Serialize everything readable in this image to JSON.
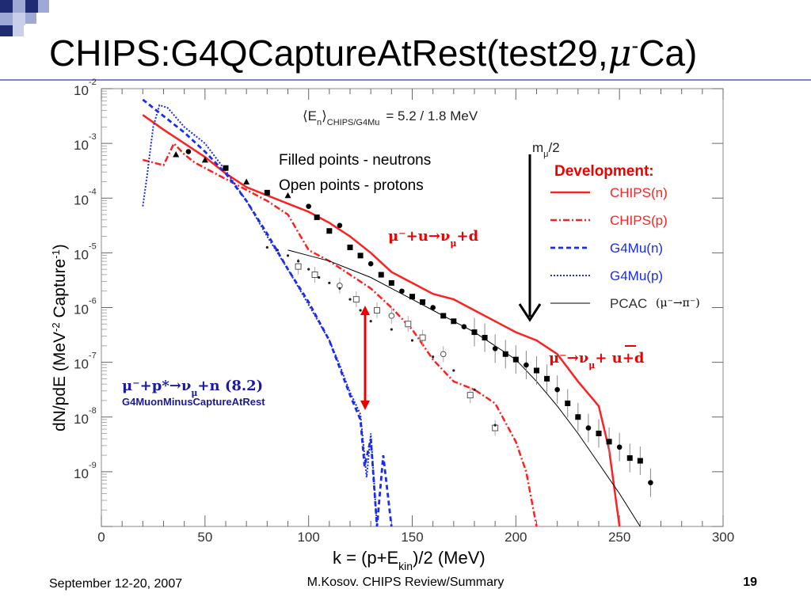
{
  "slide": {
    "title_main": "CHIPS:G4QCaptureAtRest(test29,",
    "title_mu": "μ",
    "title_sup": "-",
    "title_end": "Ca)",
    "footer_date": "September 12-20, 2007",
    "footer_author": "M.Kosov. CHIPS Review/Summary",
    "page_number": "19"
  },
  "annotations": {
    "mean_energy": "⟨E",
    "mean_energy_sub": "n",
    "mean_energy_sub2": "⟩",
    "mean_energy_sub3": "CHIPS/G4Mu",
    "mean_energy_value": "=   5.2 /  1.8 MeV",
    "filled_note": "Filled points - neutrons",
    "open_note": "Open points - protons",
    "mu_half": "m",
    "mu_half_sub": "μ",
    "mu_half_end": "/2",
    "reaction1": "μ⁻+u→ν",
    "reaction1_sub": "μ",
    "reaction1_end": "+d",
    "reaction2": "μ⁻→ν",
    "reaction2_sub": "μ",
    "reaction2_end": "+ u+d",
    "reaction3": "μ⁻+p*→ν",
    "reaction3_sub": "μ",
    "reaction3_end": "+n (8.2)",
    "reaction3_note": "G4MuonMinusCaptureAtRest",
    "development": "Development:",
    "pcac_note": "(μ⁻→π⁻)"
  },
  "chart_data": {
    "type": "line",
    "xlabel": "k = (p+E",
    "xlabel_sub": "kin",
    "xlabel_end": ")/2 (MeV)",
    "ylabel": "dN/pdE (MeV",
    "ylabel_sup": "-2",
    "ylabel_end": " Capture",
    "ylabel_sup2": "-1",
    "ylabel_close": ")",
    "xlim": [
      0,
      300
    ],
    "ylim_log10": [
      -10,
      -2
    ],
    "x_ticks": [
      "0",
      "50",
      "100",
      "150",
      "200",
      "250",
      "300"
    ],
    "y_ticks": [
      {
        "base": "10",
        "exp": "-2"
      },
      {
        "base": "10",
        "exp": "-3"
      },
      {
        "base": "10",
        "exp": "-4"
      },
      {
        "base": "10",
        "exp": "-5"
      },
      {
        "base": "10",
        "exp": "-6"
      },
      {
        "base": "10",
        "exp": "-7"
      },
      {
        "base": "10",
        "exp": "-8"
      },
      {
        "base": "10",
        "exp": "-9"
      }
    ],
    "legend_position": "right",
    "series": [
      {
        "name": "CHIPS(n)",
        "color": "#ff2020",
        "style": "solid",
        "x": [
          20,
          30,
          40,
          50,
          60,
          70,
          80,
          90,
          100,
          110,
          120,
          130,
          140,
          150,
          160,
          170,
          180,
          190,
          200,
          210,
          220,
          230,
          240,
          245,
          250
        ],
        "y": [
          -2.48,
          -2.75,
          -3.0,
          -3.25,
          -3.55,
          -3.8,
          -3.95,
          -4.1,
          -4.25,
          -4.45,
          -4.7,
          -5.0,
          -5.35,
          -5.55,
          -5.75,
          -5.85,
          -6.05,
          -6.25,
          -6.45,
          -6.6,
          -6.85,
          -7.35,
          -7.8,
          -8.6,
          -10.0
        ]
      },
      {
        "name": "CHIPS(p)",
        "color": "#ff2020",
        "style": "dashdot",
        "x": [
          20,
          25,
          30,
          35,
          40,
          45,
          50,
          60,
          70,
          80,
          90,
          100,
          110,
          120,
          130,
          140,
          150,
          160,
          170,
          180,
          190,
          200,
          205,
          210
        ],
        "y": [
          -3.3,
          -3.35,
          -3.4,
          -3.0,
          -3.2,
          -3.35,
          -3.45,
          -3.65,
          -3.85,
          -4.05,
          -4.3,
          -4.95,
          -5.15,
          -5.4,
          -5.65,
          -6.0,
          -6.4,
          -6.95,
          -7.35,
          -7.5,
          -7.75,
          -8.45,
          -9.0,
          -10.0
        ]
      },
      {
        "name": "G4Mu(n)",
        "color": "#1a2cf0",
        "style": "dashed",
        "x": [
          20,
          30,
          40,
          50,
          60,
          70,
          80,
          90,
          100,
          110,
          115,
          120,
          125,
          127,
          130,
          133,
          136,
          140
        ],
        "y": [
          -2.2,
          -2.5,
          -2.8,
          -3.15,
          -3.55,
          -4.05,
          -4.65,
          -5.3,
          -5.9,
          -6.6,
          -7.1,
          -7.6,
          -8.05,
          -8.9,
          -8.4,
          -10.0,
          -8.7,
          -10.0
        ]
      },
      {
        "name": "G4Mu(p)",
        "color": "#1a2cf0",
        "style": "dotted",
        "x": [
          20,
          22,
          25,
          28,
          32,
          40,
          50,
          60,
          70,
          80,
          90,
          100,
          110,
          115,
          120,
          125,
          128,
          130,
          133
        ],
        "y": [
          -4.15,
          -3.6,
          -2.7,
          -2.3,
          -2.35,
          -2.7,
          -3.0,
          -3.5,
          -4.05,
          -4.7,
          -5.3,
          -5.95,
          -6.6,
          -7.05,
          -7.55,
          -7.95,
          -9.1,
          -8.3,
          -10.0
        ]
      },
      {
        "name": "PCAC",
        "color": "#000000",
        "style": "solid-thin",
        "x": [
          90,
          100,
          110,
          120,
          130,
          140,
          150,
          160,
          170,
          180,
          190,
          200,
          210,
          220,
          230,
          240,
          250,
          260
        ],
        "y": [
          -4.95,
          -5.05,
          -5.15,
          -5.3,
          -5.45,
          -5.65,
          -5.85,
          -6.05,
          -6.25,
          -6.45,
          -6.7,
          -6.95,
          -7.35,
          -7.8,
          -8.3,
          -8.85,
          -9.4,
          -10.0
        ]
      }
    ],
    "points_neutrons": {
      "x": [
        36,
        42,
        50,
        60,
        70,
        80,
        90,
        100,
        104,
        110,
        115,
        120,
        125,
        130,
        135,
        140,
        145,
        150,
        155,
        160,
        165,
        170,
        175,
        180,
        185,
        190,
        195,
        200,
        205,
        210,
        215,
        220,
        225,
        230,
        235,
        240,
        245,
        250,
        255,
        260,
        265
      ],
      "y": [
        -3.2,
        -3.15,
        -3.3,
        -3.45,
        -3.7,
        -3.9,
        -3.95,
        -4.15,
        -4.35,
        -4.6,
        -4.5,
        -4.9,
        -5.05,
        -5.2,
        -5.4,
        -5.55,
        -5.7,
        -5.8,
        -5.9,
        -6.0,
        -6.15,
        -6.25,
        -6.35,
        -6.45,
        -6.55,
        -6.75,
        -6.85,
        -6.95,
        -7.05,
        -7.15,
        -7.3,
        -7.5,
        -7.75,
        -8.0,
        -8.2,
        -8.3,
        -8.45,
        -8.55,
        -8.75,
        -8.8,
        -9.2
      ]
    },
    "points_protons": {
      "x": [
        80,
        85,
        90,
        95,
        100,
        105,
        110,
        115,
        120,
        125,
        130,
        140,
        150,
        160,
        170,
        180,
        190
      ],
      "y": [
        -4.9,
        -4.95,
        -5.05,
        -5.15,
        -5.3,
        -5.45,
        -5.55,
        -5.65,
        -5.85,
        -6.05,
        -6.25,
        -6.4,
        -6.6,
        -6.9,
        -7.15,
        -7.5,
        -8.15
      ]
    },
    "points_protons_open": {
      "x": [
        95,
        103,
        115,
        123,
        133,
        140,
        148,
        155,
        165,
        178,
        190
      ],
      "y": [
        -5.25,
        -5.4,
        -5.6,
        -5.85,
        -6.05,
        -6.15,
        -6.3,
        -6.55,
        -6.85,
        -7.6,
        -8.2
      ]
    },
    "legend": [
      {
        "label": "CHIPS(n)",
        "style": "solid",
        "color": "#ff2020"
      },
      {
        "label": "CHIPS(p)",
        "style": "dashdot",
        "color": "#ff2020"
      },
      {
        "label": "G4Mu(n)",
        "style": "dashed",
        "color": "#1a2cf0"
      },
      {
        "label": "G4Mu(p)",
        "style": "dotted",
        "color": "#1a2cf0"
      },
      {
        "label": "PCAC",
        "style": "solid-thin",
        "color": "#000000"
      }
    ]
  },
  "colors": {
    "accent_dark": "#1f2c74",
    "accent_light": "#9fa9d6",
    "red": "#ff2020",
    "blue": "#1a2cf0"
  }
}
